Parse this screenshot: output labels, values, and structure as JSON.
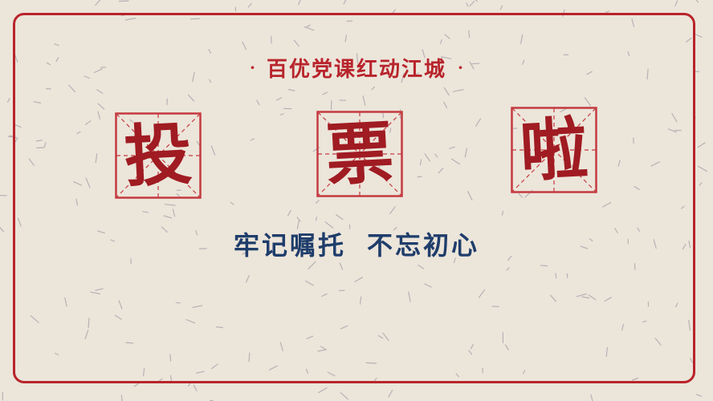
{
  "subtitle": {
    "dot_left": "·",
    "text": "百优党课红动江城",
    "dot_right": "·"
  },
  "headline": {
    "chars": [
      "投",
      "票",
      "啦"
    ]
  },
  "slogan": {
    "part1": "牢记嘱托",
    "part2": "不忘初心"
  },
  "colors": {
    "background": "#ece5da",
    "frame": "#b8242b",
    "headline": "#a01b22",
    "grid": "#c43a40",
    "slogan": "#1f3d6b",
    "fibers": "#a6a0a8"
  }
}
